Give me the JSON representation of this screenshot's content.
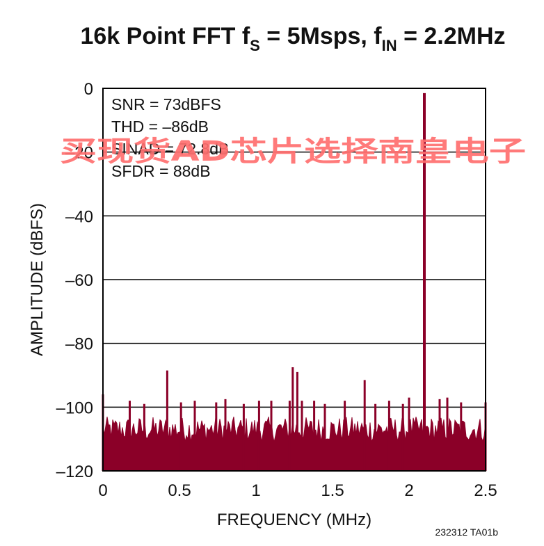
{
  "chart_data": {
    "type": "line",
    "title": {
      "parts": [
        "16k Point FFT f",
        "S",
        " = 5Msps, f",
        "IN",
        " = 2.2MHz"
      ],
      "text": "16k Point FFT fS = 5Msps, fIN = 2.2MHz"
    },
    "xlabel": "FREQUENCY (MHz)",
    "ylabel": "AMPLITUDE (dBFS)",
    "xlim": [
      0,
      2.5
    ],
    "ylim": [
      -120,
      0
    ],
    "xticks": [
      0,
      0.5,
      1,
      1.5,
      2,
      2.5
    ],
    "xtick_labels": [
      "0",
      "0.5",
      "1",
      "1.5",
      "2",
      "2.5"
    ],
    "yticks": [
      0,
      -20,
      -40,
      -60,
      -80,
      -100,
      -120
    ],
    "ytick_labels": [
      "0",
      "–20",
      "–40",
      "–60",
      "–80",
      "–100",
      "–120"
    ],
    "grid": "horizontal",
    "series_color": "#8b0028",
    "noise_floor": {
      "band": [
        -111,
        -103
      ],
      "extent": [
        0,
        2.5
      ]
    },
    "series": [
      {
        "x": [
          0.0,
          0.175,
          0.27,
          0.42,
          0.51,
          0.6,
          0.74,
          0.8,
          0.92,
          1.02,
          1.1,
          1.22,
          1.24,
          1.27,
          1.3,
          1.38,
          1.45,
          1.58,
          1.71,
          1.78,
          1.87,
          1.96,
          2.0,
          2.1,
          2.2,
          2.25,
          2.34,
          2.5
        ],
        "y": [
          -96,
          -98,
          -99,
          -88.5,
          -98.5,
          -98,
          -98.5,
          -97.5,
          -99,
          -98,
          -98,
          -98,
          -87.5,
          -89,
          -98,
          -98,
          -99,
          -98,
          -91.5,
          -99,
          -98,
          -99,
          -97,
          -1.5,
          -97.5,
          -97,
          -98.5,
          -98.5
        ]
      }
    ],
    "annotations": [
      "SNR = 73dBFS",
      "THD = –86dB",
      "SINAD = 72.8dB",
      "SFDR = 88dB"
    ]
  },
  "figure_id": "232312 TA01b",
  "watermark": {
    "text": "买现货AD芯片选择南皇电子",
    "color": "#ff6f6f"
  }
}
